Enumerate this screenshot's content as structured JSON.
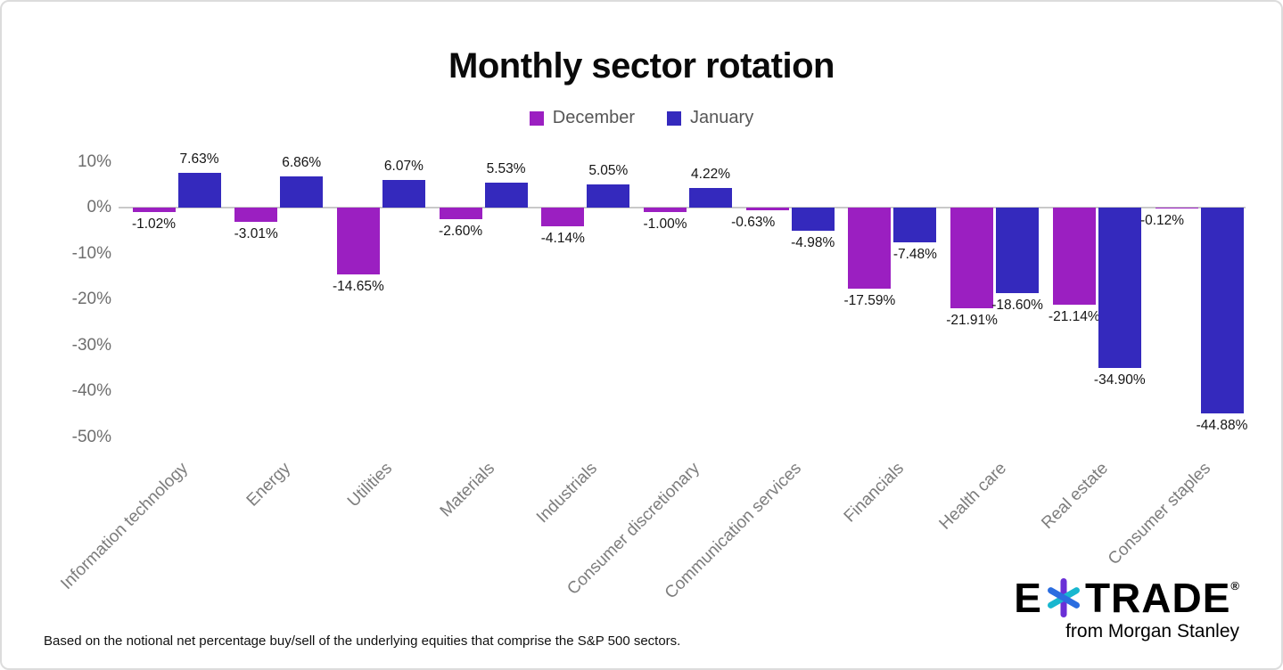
{
  "title": "Monthly sector rotation",
  "legend": {
    "items": [
      {
        "label": "December",
        "color": "#9B1FC1"
      },
      {
        "label": "January",
        "color": "#3429BD"
      }
    ]
  },
  "footnote": "Based on the notional net percentage buy/sell of the underlying equities that comprise the S&P 500 sectors.",
  "logo": {
    "prefix": "E",
    "suffix": "TRADE",
    "registered": "®",
    "tagline": "from Morgan Stanley"
  },
  "chart_data": {
    "type": "bar",
    "title": "Monthly sector rotation",
    "categories": [
      "Information technology",
      "Energy",
      "Utilities",
      "Materials",
      "Industrials",
      "Consumer discretionary",
      "Communication services",
      "Financials",
      "Health care",
      "Real estate",
      "Consumer staples"
    ],
    "series": [
      {
        "name": "December",
        "color": "#9B1FC1",
        "values": [
          -1.02,
          -3.01,
          -14.65,
          -2.6,
          -4.14,
          -1.0,
          -0.63,
          -17.59,
          -21.91,
          -21.14,
          -0.12
        ]
      },
      {
        "name": "January",
        "color": "#3429BD",
        "values": [
          7.63,
          6.86,
          6.07,
          5.53,
          5.05,
          4.22,
          -4.98,
          -7.48,
          -18.6,
          -34.9,
          -44.88
        ]
      }
    ],
    "y_ticks": [
      10,
      0,
      -10,
      -20,
      -30,
      -40,
      -50
    ],
    "ylim": [
      -50,
      10
    ],
    "value_label_suffix": "%",
    "grid": "zero-line-only",
    "legend_position": "top"
  }
}
